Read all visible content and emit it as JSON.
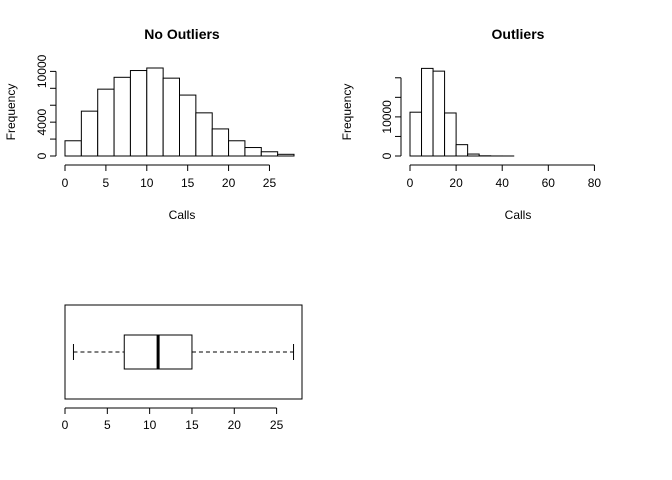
{
  "chart_data": [
    {
      "type": "bar",
      "subtype": "histogram",
      "title": "No Outliers",
      "xlabel": "Calls",
      "ylabel": "Frequency",
      "bin_edges": [
        0,
        2,
        4,
        6,
        8,
        10,
        12,
        14,
        16,
        18,
        20,
        22,
        24,
        26,
        28
      ],
      "values": [
        1800,
        5300,
        7900,
        9300,
        10100,
        10400,
        9200,
        7200,
        5100,
        3200,
        1800,
        1000,
        500,
        200
      ],
      "xlim": [
        0,
        28
      ],
      "ylim": [
        0,
        10400
      ],
      "x_ticks": [
        0,
        5,
        10,
        15,
        20,
        25
      ],
      "y_ticks": [
        0,
        2000,
        4000,
        6000,
        8000,
        10000
      ],
      "y_tick_labels": [
        {
          "value": 0,
          "text": "0"
        },
        {
          "value": 4000,
          "text": "4000"
        },
        {
          "value": 10000,
          "text": "10000"
        }
      ]
    },
    {
      "type": "bar",
      "subtype": "histogram",
      "title": "Outliers",
      "xlabel": "Calls",
      "ylabel": "Frequency",
      "bin_edges": [
        0,
        5,
        10,
        15,
        20,
        25,
        30,
        35,
        40,
        45,
        50,
        55,
        60,
        65,
        70,
        75,
        80,
        85,
        90,
        95
      ],
      "values": [
        11200,
        22400,
        21700,
        11000,
        2900,
        500,
        50,
        10,
        5,
        0,
        0,
        0,
        0,
        0,
        0,
        0,
        0,
        0,
        0
      ],
      "xlim": [
        0,
        95
      ],
      "ylim": [
        0,
        22500
      ],
      "x_ticks": [
        0,
        20,
        40,
        60,
        80
      ],
      "y_ticks": [
        0,
        5000,
        10000,
        15000,
        20000
      ],
      "y_tick_labels": [
        {
          "value": 0,
          "text": "0"
        },
        {
          "value": 10000,
          "text": "10000"
        }
      ]
    },
    {
      "type": "boxplot",
      "horizontal": true,
      "min": 1,
      "q1": 7,
      "median": 11,
      "q3": 15,
      "max": 27,
      "xlim": [
        0,
        28
      ],
      "x_ticks": [
        0,
        5,
        10,
        15,
        20,
        25
      ]
    }
  ]
}
